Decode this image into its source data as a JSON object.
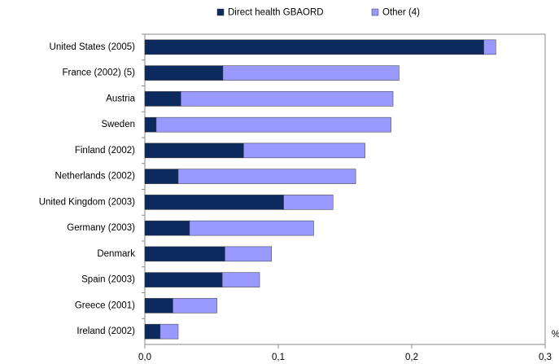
{
  "chart_data": {
    "type": "bar",
    "orientation": "horizontal",
    "stacked": true,
    "categories": [
      "United States (2005)",
      "France (2002) (5)",
      "Austria",
      "Sweden",
      "Finland (2002)",
      "Netherlands (2002)",
      "United Kingdom (2003)",
      "Germany (2003)",
      "Denmark",
      "Spain (2003)",
      "Greece (2001)",
      "Ireland (2002)"
    ],
    "series": [
      {
        "name": "Direct health GBAORD",
        "color": "#0d2a5e",
        "values": [
          0.254,
          0.0585,
          0.027,
          0.0085,
          0.074,
          0.025,
          0.104,
          0.0335,
          0.06,
          0.058,
          0.021,
          0.0115
        ]
      },
      {
        "name": "Other (4)",
        "color": "#9999ff",
        "values": [
          0.009,
          0.132,
          0.159,
          0.176,
          0.091,
          0.133,
          0.037,
          0.093,
          0.035,
          0.028,
          0.033,
          0.0135
        ]
      }
    ],
    "xlabel": "%",
    "xlim": [
      0,
      0.3
    ],
    "xticks": [
      {
        "value": 0,
        "label": "0,0"
      },
      {
        "value": 0.1,
        "label": "0,1"
      },
      {
        "value": 0.2,
        "label": "0,2"
      },
      {
        "value": 0.3,
        "label": "0,3"
      }
    ],
    "legend": "top"
  }
}
